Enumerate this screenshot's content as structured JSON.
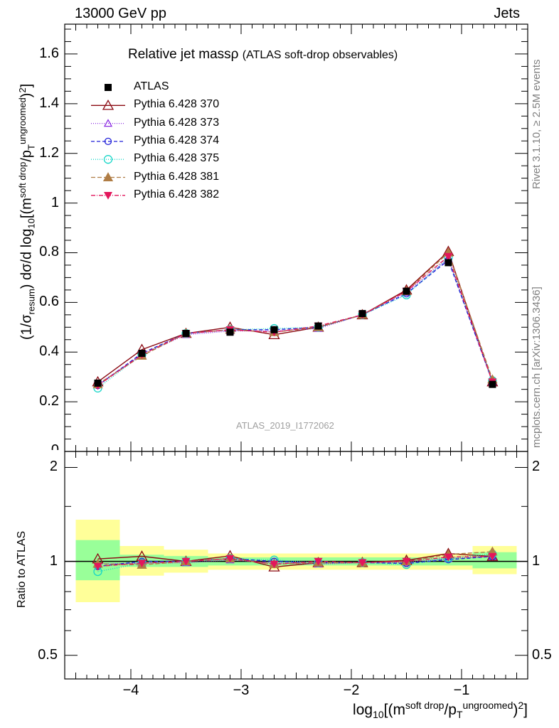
{
  "header": {
    "left": "13000 GeV pp",
    "right": "Jets"
  },
  "side": {
    "rivet": "Rivet 3.1.10, ≥ 2.5M events",
    "mcplots": "mcplots.cern.ch [arXiv:1306.3436]"
  },
  "colors": {
    "atlas": "#000000",
    "p370": "#8b0a13",
    "p373": "#8b2be2",
    "p374": "#1f1fd8",
    "p375": "#18d6c8",
    "p381": "#b07d45",
    "p382": "#e3165b",
    "band_green": "#99ff99",
    "band_yellow": "#ffff99"
  },
  "chart_data": {
    "type": "line",
    "title": "Relative jet massρ",
    "subtitle": "(ATLAS soft-drop observables)",
    "watermark": "ATLAS_2019_I1772062",
    "ylabel": "(1/σ_resum) dσ/d log10[(m^soft drop/pT^ungroomed)^2]",
    "xlabel": "log10[(m^soft drop/pT^ungroomed)^2]",
    "ratio_ylabel": "Ratio to ATLAS",
    "xlim": [
      -4.6,
      -0.4
    ],
    "ylim": [
      0,
      1.72
    ],
    "ratio_ylim": [
      0.42,
      2.25
    ],
    "y_ticks": [
      "0",
      "0.2",
      "0.4",
      "0.6",
      "0.8",
      "1",
      "1.2",
      "1.4",
      "1.6"
    ],
    "x_ticks": [
      "−4",
      "−3",
      "−2",
      "−1"
    ],
    "ratio_ticks": [
      "0.5",
      "1",
      "2"
    ],
    "bins": [
      [
        -4.5,
        -4.1
      ],
      [
        -4.1,
        -3.7
      ],
      [
        -3.7,
        -3.3
      ],
      [
        -3.3,
        -2.9
      ],
      [
        -2.9,
        -2.5
      ],
      [
        -2.5,
        -2.1
      ],
      [
        -2.1,
        -1.7
      ],
      [
        -1.7,
        -1.3
      ],
      [
        -1.3,
        -0.9
      ],
      [
        -0.9,
        -0.5
      ]
    ],
    "x": [
      -4.3,
      -3.9,
      -3.5,
      -3.1,
      -2.7,
      -2.3,
      -1.9,
      -1.5,
      -1.12,
      -0.72
    ],
    "data": {
      "name": "ATLAS",
      "values": [
        0.275,
        0.395,
        0.475,
        0.48,
        0.49,
        0.505,
        0.555,
        0.645,
        0.76,
        0.27
      ]
    },
    "series": [
      {
        "name": "Pythia 6.428 370",
        "marker": "triangle-open",
        "dash": "solid",
        "color": "#8b0a13",
        "values": [
          0.28,
          0.41,
          0.475,
          0.5,
          0.47,
          0.5,
          0.55,
          0.65,
          0.805,
          0.28
        ]
      },
      {
        "name": "Pythia 6.428 373",
        "marker": "triangle-open-small",
        "dash": "1,2",
        "color": "#8b2be2",
        "values": [
          0.27,
          0.39,
          0.47,
          0.485,
          0.485,
          0.495,
          0.55,
          0.64,
          0.775,
          0.28
        ]
      },
      {
        "name": "Pythia 6.428 374",
        "marker": "circle-open",
        "dash": "5,3",
        "color": "#1f1fd8",
        "values": [
          0.265,
          0.395,
          0.475,
          0.49,
          0.49,
          0.5,
          0.55,
          0.635,
          0.77,
          0.28
        ]
      },
      {
        "name": "Pythia 6.428 375",
        "marker": "circle-open-large",
        "dash": "1,2",
        "color": "#18d6c8",
        "values": [
          0.255,
          0.39,
          0.475,
          0.49,
          0.495,
          0.5,
          0.55,
          0.63,
          0.78,
          0.285
        ]
      },
      {
        "name": "Pythia 6.428 381",
        "marker": "triangle-filled",
        "dash": "6,3",
        "color": "#b07d45",
        "values": [
          0.27,
          0.385,
          0.475,
          0.49,
          0.48,
          0.5,
          0.55,
          0.645,
          0.8,
          0.29
        ]
      },
      {
        "name": "Pythia 6.428 382",
        "marker": "triangle-down-filled",
        "dash": "6,2,1,2",
        "color": "#e3165b",
        "values": [
          0.265,
          0.39,
          0.475,
          0.49,
          0.48,
          0.505,
          0.55,
          0.645,
          0.785,
          0.28
        ]
      }
    ],
    "ratio_band_inner": [
      [
        0.87,
        1.17
      ],
      [
        0.96,
        1.05
      ],
      [
        0.96,
        1.04
      ],
      [
        0.97,
        1.03
      ],
      [
        0.97,
        1.03
      ],
      [
        0.97,
        1.03
      ],
      [
        0.97,
        1.03
      ],
      [
        0.97,
        1.03
      ],
      [
        0.97,
        1.03
      ],
      [
        0.95,
        1.07
      ]
    ],
    "ratio_band_outer": [
      [
        0.74,
        1.36
      ],
      [
        0.9,
        1.12
      ],
      [
        0.92,
        1.09
      ],
      [
        0.94,
        1.06
      ],
      [
        0.94,
        1.06
      ],
      [
        0.94,
        1.06
      ],
      [
        0.94,
        1.06
      ],
      [
        0.94,
        1.06
      ],
      [
        0.94,
        1.06
      ],
      [
        0.91,
        1.12
      ]
    ],
    "legend_placement": "top-left"
  }
}
